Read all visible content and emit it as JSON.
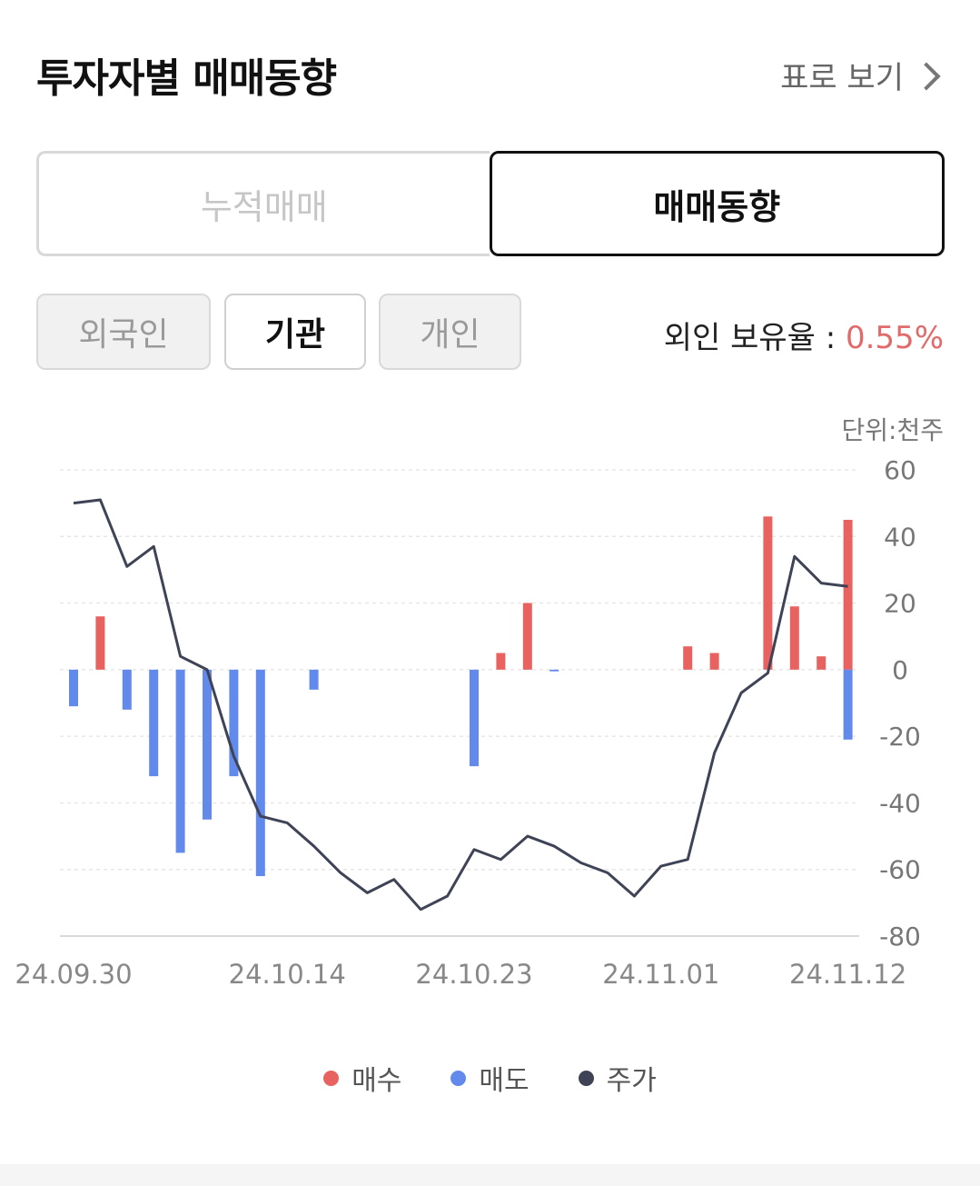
{
  "header": {
    "title": "투자자별 매매동향",
    "table_view": "표로 보기"
  },
  "tabs": [
    "누적매매",
    "매매동향"
  ],
  "investors": [
    "외국인",
    "기관",
    "개인"
  ],
  "holding": {
    "label": "외인 보유율 : ",
    "value": "0.55%"
  },
  "unit": "단위:천주",
  "colors": {
    "buy": "#e8625f",
    "sell": "#6289ec",
    "price": "#3f4356"
  },
  "chart_data": {
    "type": "bar+line",
    "x": [
      "24.09.30",
      "24.10.01",
      "24.10.02",
      "24.10.04",
      "24.10.07",
      "24.10.08",
      "24.10.10",
      "24.10.11",
      "24.10.14",
      "24.10.15",
      "24.10.16",
      "24.10.17",
      "24.10.18",
      "24.10.21",
      "24.10.22",
      "24.10.23",
      "24.10.24",
      "24.10.25",
      "24.10.28",
      "24.10.29",
      "24.10.30",
      "24.10.31",
      "24.11.01",
      "24.11.04",
      "24.11.05",
      "24.11.06",
      "24.11.07",
      "24.11.08",
      "24.11.11",
      "24.11.12"
    ],
    "x_tick_labels": [
      "24.09.30",
      "24.10.14",
      "24.10.23",
      "24.11.01",
      "24.11.12"
    ],
    "series": [
      {
        "name": "매수",
        "values": [
          0,
          16,
          0,
          0,
          0,
          0,
          0,
          0,
          0,
          0,
          0,
          0,
          0,
          0,
          0,
          0,
          5,
          20,
          0,
          0,
          0,
          0,
          0,
          7,
          5,
          0,
          46,
          19,
          4,
          45
        ]
      },
      {
        "name": "매도",
        "values": [
          -11,
          0,
          -12,
          -32,
          -55,
          -45,
          -32,
          -62,
          0,
          -6,
          0,
          0,
          0,
          0,
          0,
          -29,
          0,
          0,
          -0.5,
          0,
          0,
          0,
          0,
          0,
          0,
          0,
          0,
          0,
          0,
          -21
        ]
      },
      {
        "name": "주가",
        "values": [
          50,
          51,
          31,
          37,
          4,
          0,
          -26,
          -44,
          -46,
          -53,
          -61,
          -67,
          -63,
          -72,
          -68,
          -54,
          -57,
          -50,
          -53,
          -58,
          -61,
          -68,
          -59,
          -57,
          -25,
          -7,
          -1,
          34,
          26,
          25
        ]
      }
    ],
    "y_ticks": [
      60,
      40,
      20,
      0,
      -20,
      -40,
      -60,
      -80
    ],
    "ylim": [
      -80,
      60
    ],
    "grid": true,
    "legend_position": "bottom"
  }
}
